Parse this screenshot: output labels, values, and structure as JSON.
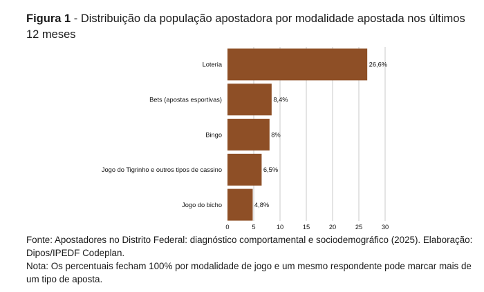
{
  "header": {
    "figure_label": "Figura 1",
    "title_rest": " - Distribuição da população apostadora por modalidade apostada nos últimos 12 meses"
  },
  "chart_data": {
    "type": "bar",
    "orientation": "horizontal",
    "categories": [
      "Loteria",
      "Bets (apostas esportivas)",
      "Bingo",
      "Jogo do Tigrinho e outros tipos de cassino",
      "Jogo do bicho"
    ],
    "values": [
      26.6,
      8.4,
      8,
      6.5,
      4.8
    ],
    "value_labels": [
      "26,6%",
      "8,4%",
      "8%",
      "6,5%",
      "4,8%"
    ],
    "xticks": [
      0,
      5,
      10,
      15,
      20,
      25,
      30
    ],
    "xlim": [
      0,
      30
    ],
    "grid": "vertical",
    "bar_color": "#8e4f26",
    "grid_color": "#c8c8c8"
  },
  "footer": {
    "source": "Fonte: Apostadores no Distrito Federal: diagnóstico comportamental e sociodemográfico (2025). Elaboração: Dipos/IPEDF Codeplan.",
    "note": "Nota: Os percentuais fecham 100% por modalidade de jogo e um mesmo respondente pode marcar mais de um tipo de aposta."
  }
}
